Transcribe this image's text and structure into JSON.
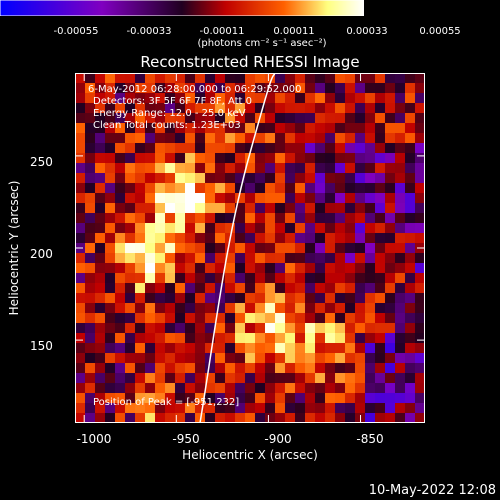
{
  "colorbar": {
    "tick_labels": [
      "-0.00055",
      "-0.00033",
      "-0.00011",
      "0.00011",
      "0.00033",
      "0.00055"
    ],
    "units": "(photons cm⁻² s⁻¹ asec⁻²)",
    "colors": [
      "#0000ff",
      "#8000c0",
      "#200020",
      "#c00000",
      "#ff6000",
      "#ffff80",
      "#ffffff"
    ]
  },
  "title": "Reconstructed RHESSI Image",
  "annotations": {
    "time": "6-May-2012 06:28:00.000 to 06:29:52.000",
    "detectors": "Detectors: 3F 5F 6F 7F 8F, Att 0",
    "energy": "Energy Range: 12.0 - 25.0 keV",
    "clean": "Clean     Total counts: 1.23E+03",
    "peak": "Position of Peak = [-951,232]"
  },
  "axes": {
    "xlabel": "Heliocentric X (arcsec)",
    "ylabel": "Heliocentric Y (arcsec)",
    "x_ticks": [
      {
        "value": -1000,
        "label": "-1000"
      },
      {
        "value": -950,
        "label": "-950"
      },
      {
        "value": -900,
        "label": "-900"
      },
      {
        "value": -850,
        "label": "-850"
      }
    ],
    "y_ticks": [
      {
        "value": 150,
        "label": "150"
      },
      {
        "value": 200,
        "label": "200"
      },
      {
        "value": 250,
        "label": "250"
      }
    ],
    "xlim": [
      -1005,
      -815
    ],
    "ylim": [
      105,
      295
    ]
  },
  "footer": "10-May-2022 12:08"
}
